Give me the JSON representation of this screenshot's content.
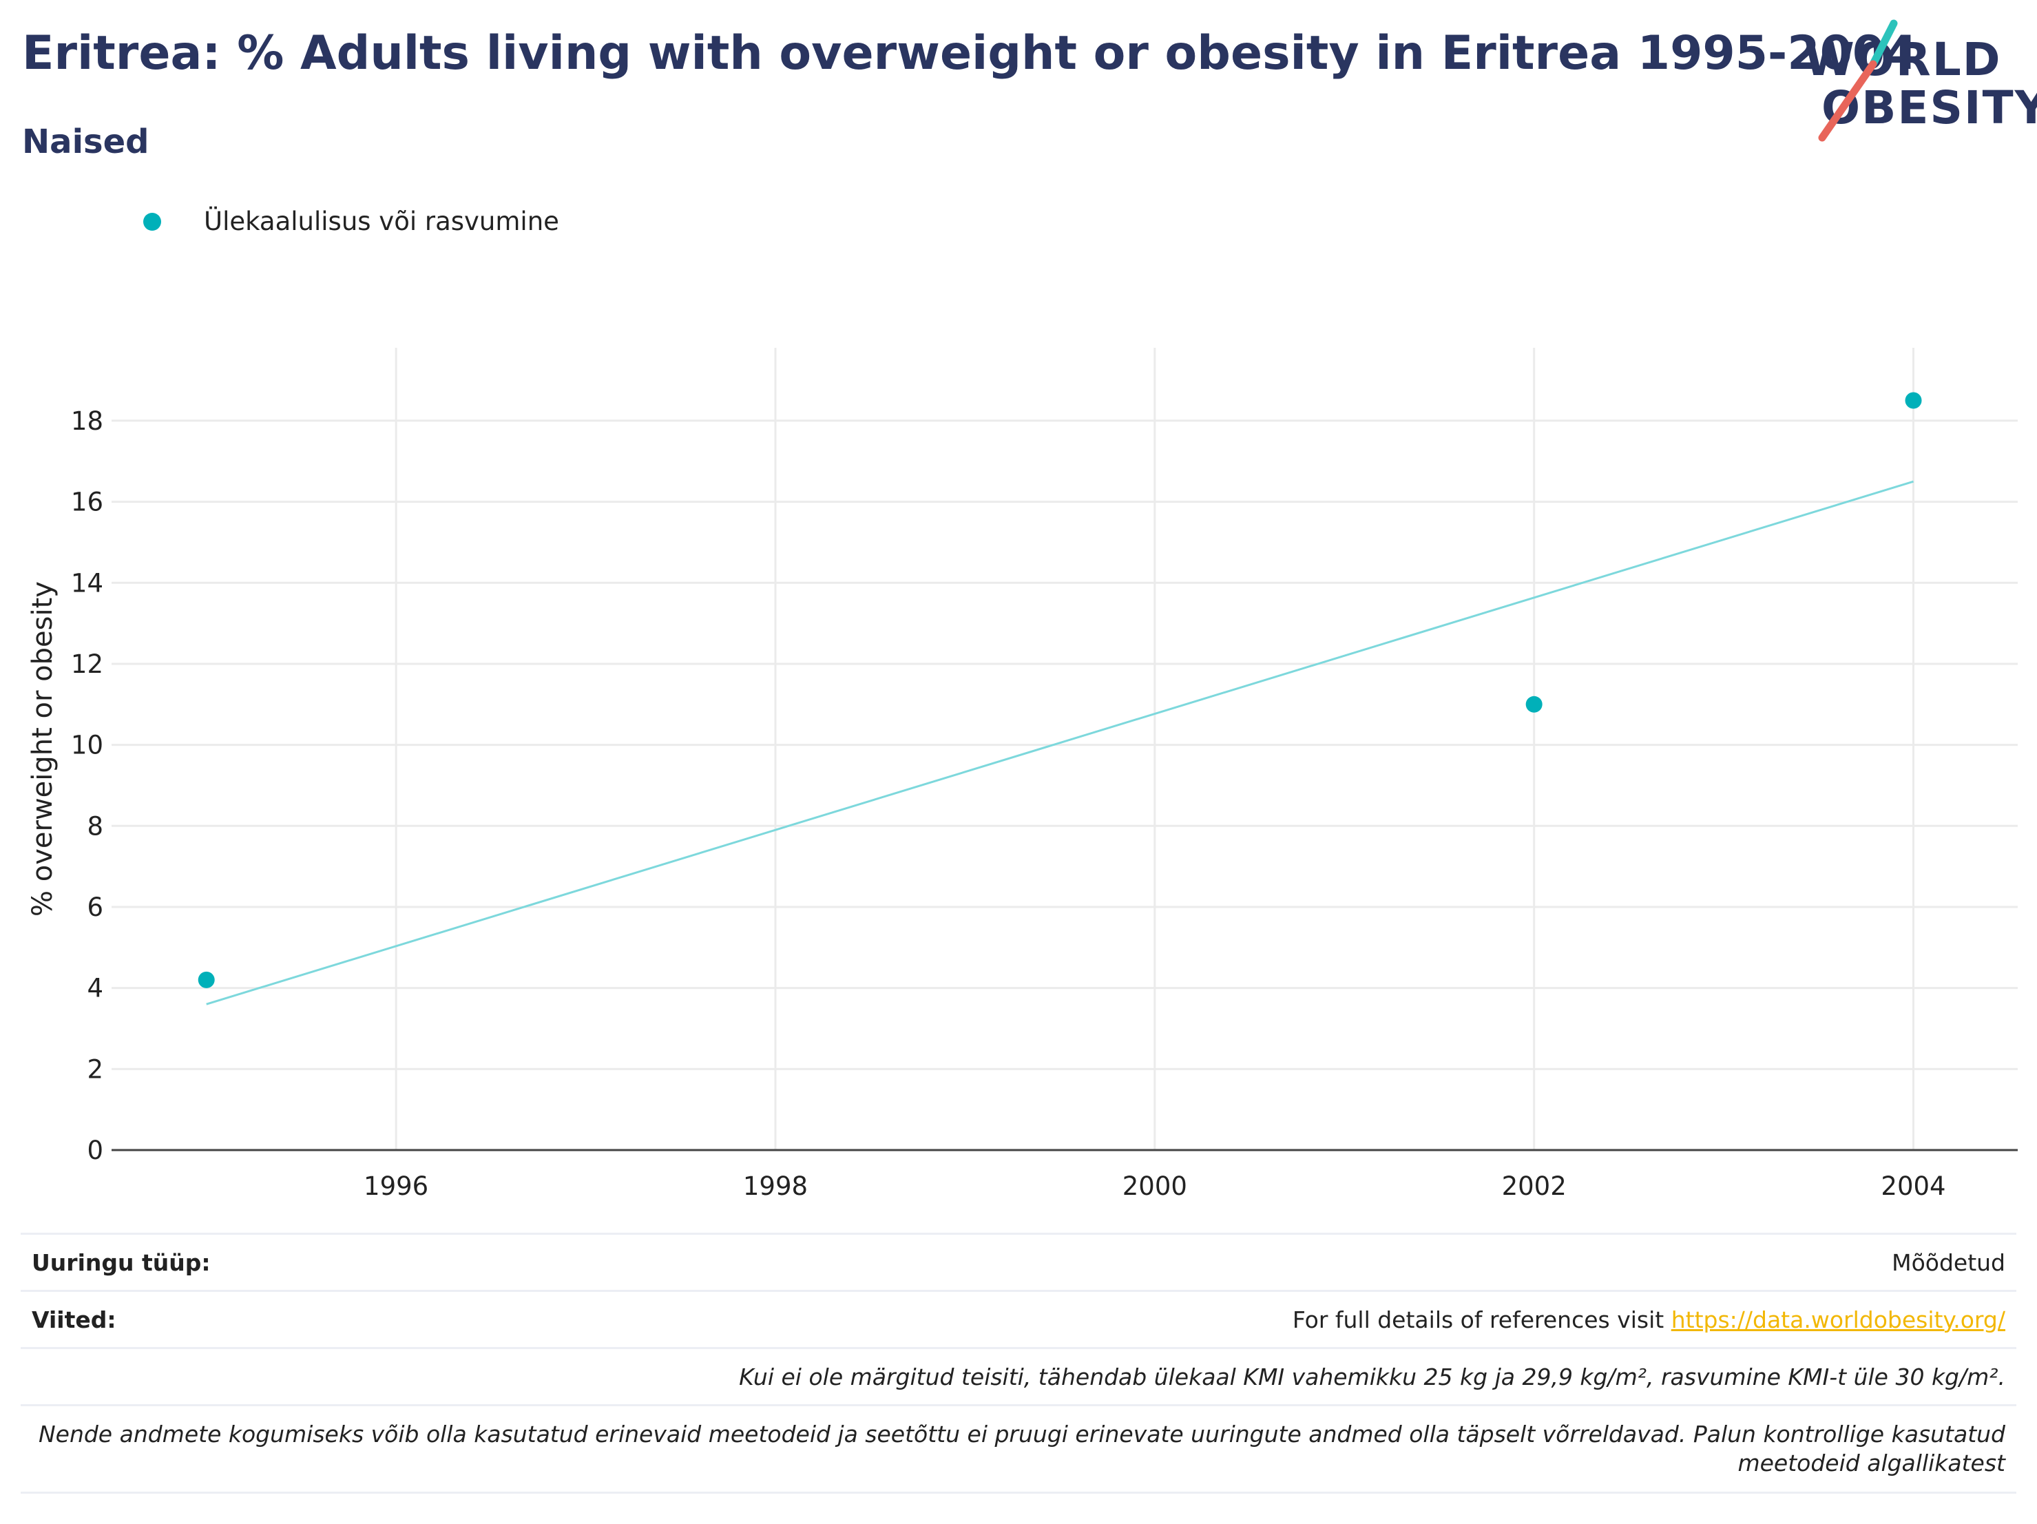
{
  "header": {
    "title": "Eritrea: % Adults living with overweight or obesity in Eritrea 1995-2004",
    "subtitle": "Naised",
    "logo_line1": "WORLD",
    "logo_line2": "OBESITY"
  },
  "legend": {
    "label": "Ülekaalulisus või rasvumine"
  },
  "colors": {
    "accent": "#00b0b9",
    "trend": "#7dd8dc",
    "title": "#2a3560",
    "logo_slash_top": "#2cc3bb",
    "logo_slash_bottom": "#e8655a",
    "link": "#f2b705"
  },
  "chart_data": {
    "type": "scatter",
    "title": "Eritrea: % Adults living with overweight or obesity in Eritrea 1995-2004",
    "subtitle": "Naised",
    "xlabel": "",
    "ylabel": "% overweight or obesity",
    "xlim": [
      1994.5,
      2004.55
    ],
    "ylim": [
      0,
      19.8
    ],
    "x_ticks": [
      1996,
      1998,
      2000,
      2002,
      2004
    ],
    "y_ticks": [
      0,
      2,
      4,
      6,
      8,
      10,
      12,
      14,
      16,
      18
    ],
    "grid": true,
    "legend_position": "top-left",
    "series": [
      {
        "name": "Ülekaalulisus või rasvumine",
        "points": [
          {
            "x": 1995,
            "y": 4.2
          },
          {
            "x": 2002,
            "y": 11.0
          },
          {
            "x": 2004,
            "y": 18.5
          }
        ]
      }
    ],
    "trend_line": {
      "x": [
        1995,
        2004
      ],
      "y": [
        3.6,
        16.5
      ]
    }
  },
  "footer": {
    "survey_type_label": "Uuringu tüüp:",
    "survey_type_value": "Mõõdetud",
    "references_label": "Viited:",
    "references_text": "For full details of references visit ",
    "references_link": "https://data.worldobesity.org/",
    "note1": "Kui ei ole märgitud teisiti, tähendab ülekaal KMI vahemikku 25 kg ja 29,9 kg/m², rasvumine KMI-t üle 30 kg/m².",
    "note2": "Nende andmete kogumiseks võib olla kasutatud erinevaid meetodeid ja seetõttu ei pruugi erinevate uuringute andmed olla täpselt võrreldavad. Palun kontrollige kasutatud meetodeid algallikatest"
  }
}
